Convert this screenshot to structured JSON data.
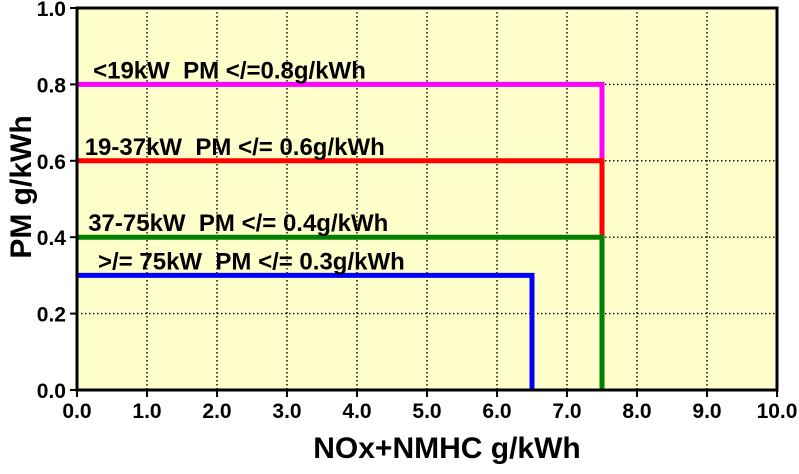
{
  "chart_data": {
    "type": "line",
    "subtype": "step-boundary",
    "title": "",
    "xlabel": "NOx+NMHC g/kWh",
    "ylabel": "PM g/kWh",
    "xlim": [
      0.0,
      10.0
    ],
    "ylim": [
      0.0,
      1.0
    ],
    "x_ticks": [
      0,
      1,
      2,
      3,
      4,
      5,
      6,
      7,
      8,
      9,
      10
    ],
    "x_tick_labels": [
      "0.0",
      "1.0",
      "2.0",
      "3.0",
      "4.0",
      "5.0",
      "6.0",
      "7.0",
      "8.0",
      "9.0",
      "10.0"
    ],
    "y_ticks": [
      0,
      0.2,
      0.4,
      0.6,
      0.8,
      1.0
    ],
    "y_tick_labels": [
      "0.0",
      "0.2",
      "0.4",
      "0.6",
      "0.8",
      "1.0"
    ],
    "grid": {
      "style": "dotted",
      "color": "#000000",
      "vertical": true,
      "horizontal": true
    },
    "legend_position": "none",
    "plot_background": "#FFFFCC",
    "page_background": "#FFFFFF",
    "border_color": "#000000",
    "series": [
      {
        "name": "lt-19kW",
        "label": "<19kW  PM </=0.8g/kWh",
        "color": "#FF00FF",
        "pm_limit_g_per_kwh": 0.8,
        "nox_nmhc_limit_g_per_kwh": 7.5,
        "points": [
          [
            0,
            0.8
          ],
          [
            7.5,
            0.8
          ],
          [
            7.5,
            0
          ]
        ],
        "label_x": 0.23
      },
      {
        "name": "19-37kW",
        "label": "19-37kW  PM </= 0.6g/kWh",
        "color": "#FF0000",
        "pm_limit_g_per_kwh": 0.6,
        "nox_nmhc_limit_g_per_kwh": 7.5,
        "points": [
          [
            0,
            0.6
          ],
          [
            7.5,
            0.6
          ],
          [
            7.5,
            0
          ]
        ],
        "label_x": 0.11
      },
      {
        "name": "37-75kW",
        "label": "37-75kW  PM </= 0.4g/kWh",
        "color": "#008000",
        "pm_limit_g_per_kwh": 0.4,
        "nox_nmhc_limit_g_per_kwh": 7.5,
        "points": [
          [
            0,
            0.4
          ],
          [
            7.5,
            0.4
          ],
          [
            7.5,
            0
          ]
        ],
        "label_x": 0.16
      },
      {
        "name": "ge-75kW",
        "label": ">/= 75kW  PM </= 0.3g/kWh",
        "color": "#0000FF",
        "pm_limit_g_per_kwh": 0.3,
        "nox_nmhc_limit_g_per_kwh": 6.5,
        "points": [
          [
            0,
            0.3
          ],
          [
            6.5,
            0.3
          ],
          [
            6.5,
            0
          ]
        ],
        "label_x": 0.3
      }
    ]
  }
}
